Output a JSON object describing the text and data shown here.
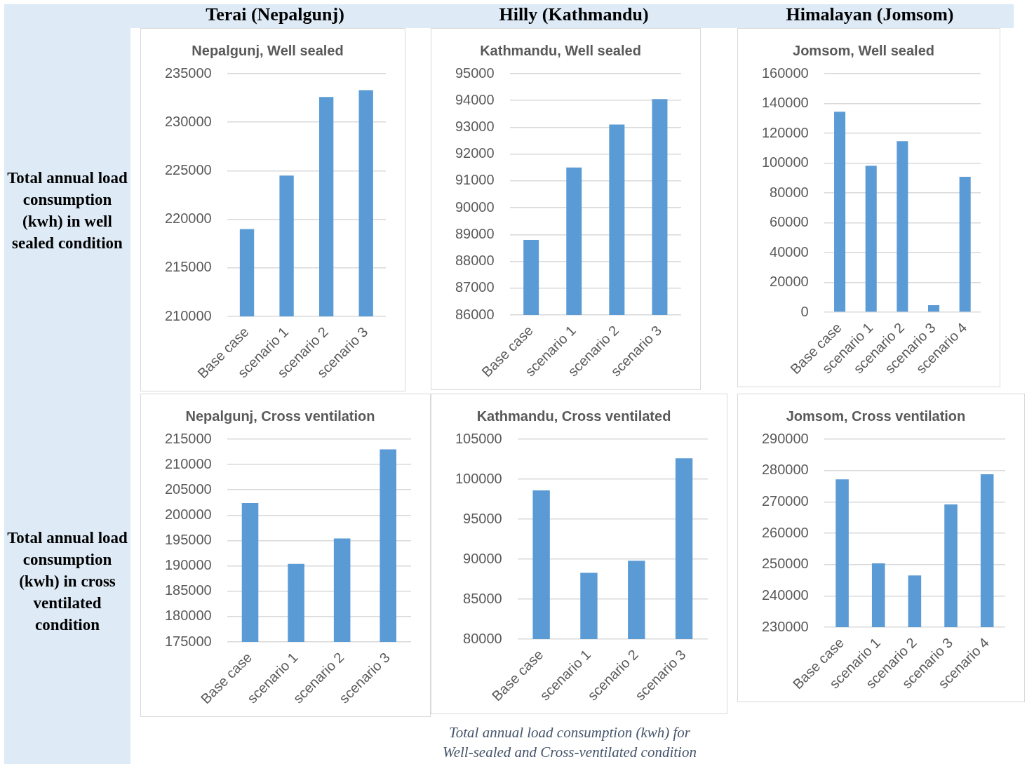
{
  "chart_data": [
    {
      "type": "bar",
      "title": "Nepalgunj, Well sealed",
      "annotations": [
        "Terai (Nepalgunj)"
      ],
      "ylabel": "Total annual load consumption (kwh) in well sealed condition",
      "categories": [
        "Base case",
        "scenario 1",
        "scenario 2",
        "scenario 3"
      ],
      "values": [
        219000,
        224500,
        232600,
        233300
      ],
      "color": "#5b9bd5",
      "ylim": [
        210000,
        235000
      ],
      "yticks": [
        210000,
        215000,
        220000,
        225000,
        230000,
        235000
      ],
      "grid": "y"
    },
    {
      "type": "bar",
      "title": "Kathmandu, Well sealed",
      "annotations": [
        "Hilly (Kathmandu)"
      ],
      "categories": [
        "Base case",
        "scenario 1",
        "scenario 2",
        "scenario 3"
      ],
      "values": [
        88800,
        91500,
        93100,
        94050
      ],
      "color": "#5b9bd5",
      "ylim": [
        86000,
        95000
      ],
      "yticks": [
        86000,
        87000,
        88000,
        89000,
        90000,
        91000,
        92000,
        93000,
        94000,
        95000
      ],
      "grid": "y"
    },
    {
      "type": "bar",
      "title": "Jomsom, Well sealed",
      "annotations": [
        "Himalayan (Jomsom)"
      ],
      "categories": [
        "Base case",
        "scenario 1",
        "scenario 2",
        "scenario 3",
        "scenario 4"
      ],
      "values": [
        134500,
        98200,
        114700,
        4700,
        90800
      ],
      "color": "#5b9bd5",
      "ylim": [
        0,
        160000
      ],
      "yticks": [
        0,
        20000,
        40000,
        60000,
        80000,
        100000,
        120000,
        140000,
        160000
      ],
      "grid": "y"
    },
    {
      "type": "bar",
      "title": "Nepalgunj, Cross ventilation",
      "ylabel": "Total annual load consumption (kwh) in cross ventilated condition",
      "categories": [
        "Base case",
        "scenario 1",
        "scenario 2",
        "scenario 3"
      ],
      "values": [
        202400,
        190400,
        195400,
        213000
      ],
      "color": "#5b9bd5",
      "ylim": [
        175000,
        215000
      ],
      "yticks": [
        175000,
        180000,
        185000,
        190000,
        195000,
        200000,
        205000,
        210000,
        215000
      ],
      "grid": "y"
    },
    {
      "type": "bar",
      "title": "Kathmandu, Cross ventilated",
      "annotations": [
        "Total annual load consumption (kwh) for\nWell-sealed and Cross-ventilated condition"
      ],
      "categories": [
        "Base case",
        "scenario 1",
        "scenario 2",
        "scenario 3"
      ],
      "values": [
        98600,
        88300,
        89800,
        102600
      ],
      "color": "#5b9bd5",
      "ylim": [
        80000,
        105000
      ],
      "yticks": [
        80000,
        85000,
        90000,
        95000,
        100000,
        105000
      ],
      "grid": "y"
    },
    {
      "type": "bar",
      "title": "Jomsom, Cross ventilation",
      "categories": [
        "Base case",
        "scenario 1",
        "scenario 2",
        "scenario 3",
        "scenario 4"
      ],
      "values": [
        277200,
        250400,
        246500,
        269200,
        278800
      ],
      "color": "#5b9bd5",
      "ylim": [
        230000,
        290000
      ],
      "yticks": [
        230000,
        240000,
        250000,
        260000,
        270000,
        280000,
        290000
      ],
      "grid": "y"
    }
  ]
}
